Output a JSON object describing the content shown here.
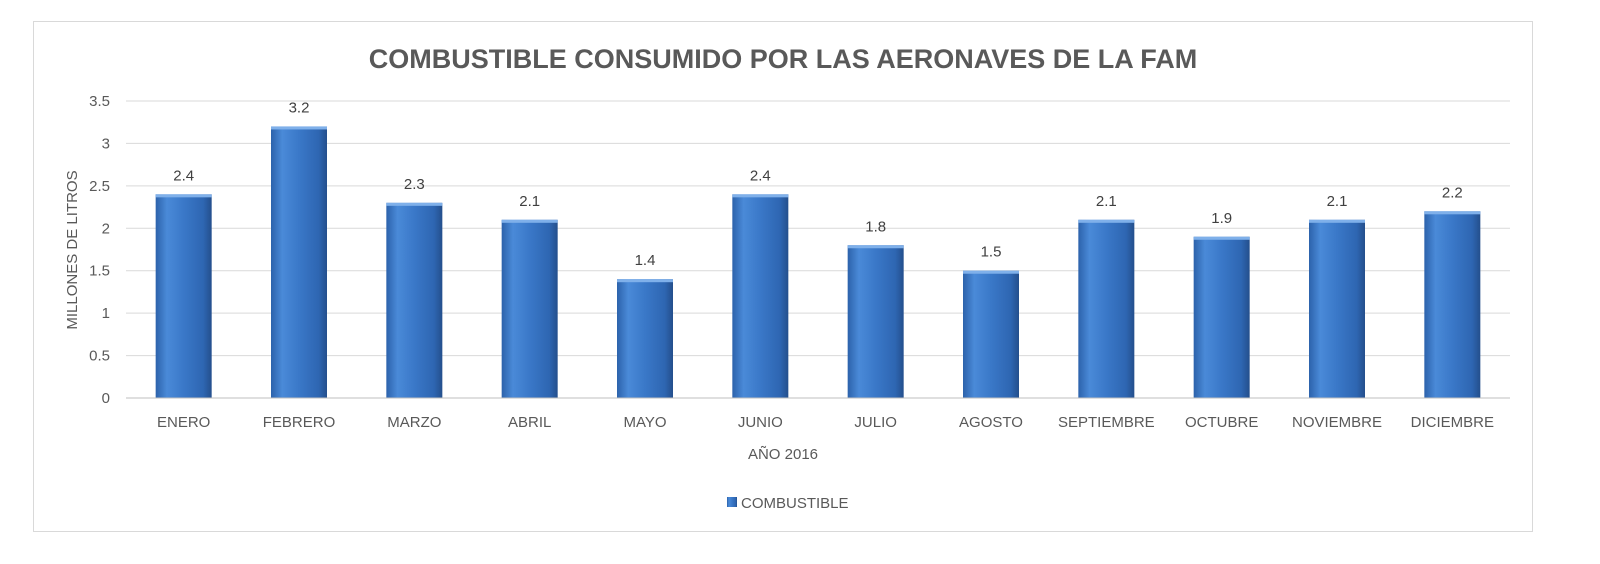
{
  "chart_data": {
    "type": "bar",
    "title": "COMBUSTIBLE CONSUMIDO POR LAS AERONAVES DE LA FAM",
    "xlabel": "AÑO 2016",
    "ylabel": "MILLONES DE LITROS",
    "ylim": [
      0,
      3.5
    ],
    "yticks": [
      "0",
      "0.5",
      "1",
      "1.5",
      "2",
      "2.5",
      "3",
      "3.5"
    ],
    "categories": [
      "ENERO",
      "FEBRERO",
      "MARZO",
      "ABRIL",
      "MAYO",
      "JUNIO",
      "JULIO",
      "AGOSTO",
      "SEPTIEMBRE",
      "OCTUBRE",
      "NOVIEMBRE",
      "DICIEMBRE"
    ],
    "series": [
      {
        "name": "COMBUSTIBLE",
        "values": [
          2.4,
          3.2,
          2.3,
          2.1,
          1.4,
          2.4,
          1.8,
          1.5,
          2.1,
          1.9,
          2.1,
          2.2
        ],
        "color": "#3a78c8"
      }
    ],
    "grid": true,
    "legend_position": "bottom"
  }
}
